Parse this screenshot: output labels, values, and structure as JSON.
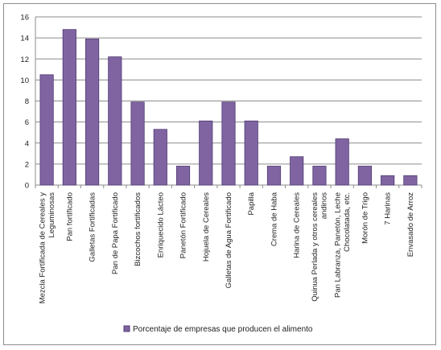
{
  "chart_data": {
    "type": "bar",
    "categories": [
      "Mezcla Fortificada de Cereales y Leguminosas",
      "Pan fortificado",
      "Galletas Fortificadas",
      "Pan de Papa Fortificado",
      "Bizcochos fortificados",
      "Enriquecido Lácteo",
      "Panetón Fortificado",
      "Hojuela de Cereales",
      "Galletas de Agua Fortificado",
      "Papilla",
      "Crema de Haba",
      "Harina de Cereales",
      "Quinua Perlada y otros cereales andinos",
      "Pan Labranza, Panetón, Leche Chocolatada, etc.",
      "Morón de Trigo",
      "7 Harinas",
      "Envasado de Arroz"
    ],
    "category_lines": [
      [
        "Mezcla Fortificada de Cereales y",
        "Leguminosas"
      ],
      [
        "Pan fortificado"
      ],
      [
        "Galletas Fortificadas"
      ],
      [
        "Pan de Papa Fortificado"
      ],
      [
        "Bizcochos fortificados"
      ],
      [
        "Enriquecido Lácteo"
      ],
      [
        "Panetón Fortificado"
      ],
      [
        "Hojuela de Cereales"
      ],
      [
        "Galletas de Agua Fortificado"
      ],
      [
        "Papilla"
      ],
      [
        "Crema de Haba"
      ],
      [
        "Harina de Cereales"
      ],
      [
        "Quinua Perlada y otros cereales",
        "andinos"
      ],
      [
        "Pan Labranza, Panetón, Leche",
        "Chocolatada, etc."
      ],
      [
        "Morón de Trigo"
      ],
      [
        "7 Harinas"
      ],
      [
        "Envasado de Arroz"
      ]
    ],
    "series": [
      {
        "name": "Porcentaje de empresas que producen el alimento",
        "values": [
          10.5,
          14.8,
          13.9,
          12.2,
          7.9,
          5.3,
          1.8,
          6.1,
          7.9,
          6.1,
          1.8,
          2.7,
          1.8,
          4.4,
          1.8,
          0.9,
          0.9
        ]
      }
    ],
    "ylim": [
      0,
      16
    ],
    "yticks": [
      0,
      2,
      4,
      6,
      8,
      10,
      12,
      14,
      16
    ],
    "grid": true,
    "legend": "bottom",
    "colors": {
      "bar_fill": "#8064a2",
      "bar_stroke": "#4f3b73",
      "grid": "#8c8c8c"
    }
  }
}
